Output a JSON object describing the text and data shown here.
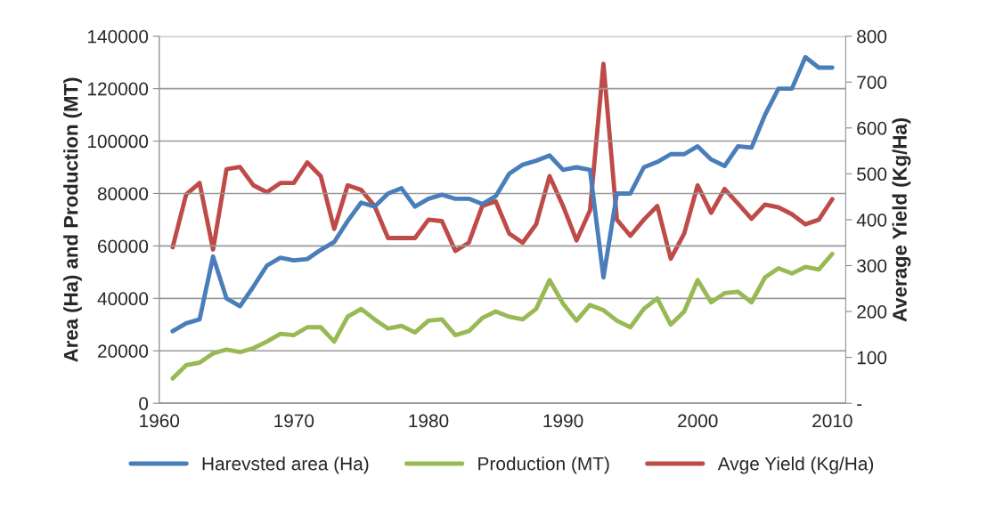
{
  "chart_data": {
    "type": "line",
    "ylabel": "Area (Ha) and Production (MT)",
    "y2label": "Average Yield (Kg/Ha)",
    "x": [
      1961,
      1962,
      1963,
      1964,
      1965,
      1966,
      1967,
      1968,
      1969,
      1970,
      1971,
      1972,
      1973,
      1974,
      1975,
      1976,
      1977,
      1978,
      1979,
      1980,
      1981,
      1982,
      1983,
      1984,
      1985,
      1986,
      1987,
      1988,
      1989,
      1990,
      1991,
      1992,
      1993,
      1994,
      1995,
      1996,
      1997,
      1998,
      1999,
      2000,
      2001,
      2002,
      2003,
      2004,
      2005,
      2006,
      2007,
      2008,
      2009,
      2010
    ],
    "series": [
      {
        "name": "Harevsted area (Ha)",
        "color": "#4a7ebb",
        "values": [
          27500,
          30500,
          32000,
          56000,
          40000,
          37000,
          44500,
          52500,
          55500,
          54500,
          55000,
          58500,
          61500,
          69500,
          76500,
          75000,
          80000,
          82000,
          75000,
          78000,
          79500,
          78000,
          78000,
          76000,
          79000,
          87500,
          91000,
          92500,
          94500,
          89000,
          90000,
          89000,
          48000,
          80000,
          80000,
          90000,
          92000,
          95000,
          95000,
          98000,
          93000,
          90500,
          98000,
          97500,
          110000,
          120000,
          120000,
          132000,
          128000,
          128000
        ]
      },
      {
        "name": "Production (MT)",
        "color": "#98b954",
        "values": [
          9500,
          14500,
          15500,
          19000,
          20500,
          19500,
          21000,
          23500,
          26500,
          26000,
          29000,
          29000,
          23500,
          33000,
          36000,
          32000,
          28500,
          29500,
          27000,
          31500,
          32000,
          26000,
          27500,
          32500,
          35000,
          33000,
          32000,
          36000,
          47000,
          38000,
          31500,
          37500,
          35500,
          31500,
          29000,
          36000,
          40000,
          30000,
          35000,
          47000,
          38500,
          42000,
          42500,
          38500,
          48000,
          51500,
          49500,
          52000,
          51000,
          57000
        ]
      },
      {
        "name": "Avge Yield (Kg/Ha)",
        "color": "#be4b48",
        "axis": "y2",
        "values": [
          340,
          455,
          480,
          335,
          510,
          515,
          475,
          460,
          480,
          480,
          525,
          495,
          380,
          475,
          465,
          430,
          360,
          360,
          360,
          400,
          397,
          332,
          350,
          430,
          440,
          370,
          350,
          390,
          495,
          430,
          355,
          420,
          740,
          400,
          365,
          400,
          430,
          315,
          370,
          475,
          415,
          467,
          435,
          402,
          433,
          427,
          412,
          390,
          400,
          445
        ]
      }
    ],
    "xlim": [
      1960,
      2011
    ],
    "xticks": [
      1960,
      1970,
      1980,
      1990,
      2000,
      2010
    ],
    "ylim": [
      0,
      140000
    ],
    "yticks": [
      0,
      20000,
      40000,
      60000,
      80000,
      100000,
      120000,
      140000
    ],
    "y2lim": [
      0,
      800
    ],
    "y2ticks": [
      {
        "value": 0,
        "label": "-"
      },
      100,
      200,
      300,
      400,
      500,
      600,
      700,
      800
    ],
    "grid": "y",
    "legend": "bottom",
    "marker": "none",
    "line_style": "solid"
  }
}
